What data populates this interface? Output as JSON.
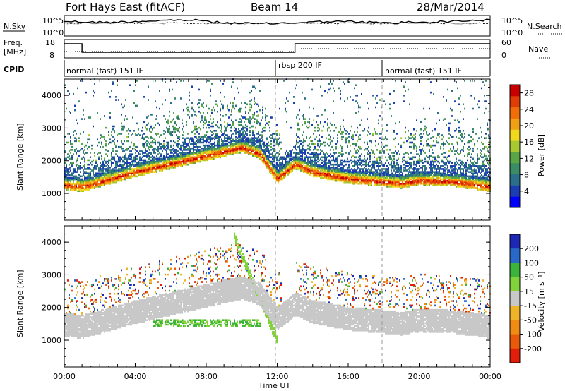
{
  "header": {
    "radar": "Fort Hays East (fitACF)",
    "beam": "Beam 14",
    "date": "28/Mar/2014"
  },
  "noise_panel": {
    "left_label": "N.Sky",
    "right_label": "N.Search",
    "left_ticks": [
      "10^5",
      "10^0"
    ],
    "right_ticks": [
      "10^5",
      "10^0"
    ]
  },
  "freq_panel": {
    "left_label_1": "Freq.",
    "left_label_2": "[MHz]",
    "right_label": "Nave",
    "left_ticks": [
      "18",
      "8"
    ],
    "right_ticks": [
      "60",
      "0"
    ]
  },
  "cpid": {
    "label": "CPID",
    "segments": [
      {
        "text": "normal (fast) 151 IF",
        "start_hour": 0
      },
      {
        "text": "rbsp 200 IF",
        "start_hour": 12.0
      },
      {
        "text": "normal (fast) 151 IF",
        "start_hour": 18.0
      }
    ]
  },
  "chart_data": [
    {
      "type": "heatmap",
      "name": "power",
      "ylabel": "Slant Range [km]",
      "xlabel": "",
      "xlim": [
        0,
        24
      ],
      "ylim": [
        180,
        4500
      ],
      "yticks": [
        1000,
        2000,
        3000,
        4000
      ],
      "colorbar": {
        "label": "Power [dB]",
        "ticks": [
          4,
          8,
          12,
          16,
          20,
          24,
          28
        ],
        "range": [
          0,
          30
        ],
        "colors": [
          "#0000ff",
          "#1c3cb4",
          "#2a6e8c",
          "#3a8c64",
          "#5aa646",
          "#a8c832",
          "#f0d81e",
          "#f0a014",
          "#f06e0a",
          "#e03c05",
          "#c80000"
        ]
      },
      "bands": [
        {
          "name": "main echo",
          "range_km": [
            [
              0,
              1150
            ],
            [
              1,
              1100
            ],
            [
              2,
              1250
            ],
            [
              4,
              1550
            ],
            [
              6,
              1800
            ],
            [
              8,
              2050
            ],
            [
              10,
              2300
            ],
            [
              11,
              2100
            ],
            [
              12,
              1350
            ],
            [
              13,
              1800
            ],
            [
              14,
              1550
            ],
            [
              16,
              1350
            ],
            [
              18,
              1250
            ],
            [
              19,
              1200
            ],
            [
              20,
              1300
            ],
            [
              22,
              1250
            ],
            [
              24,
              1100
            ]
          ]
        }
      ]
    },
    {
      "type": "heatmap",
      "name": "velocity",
      "ylabel": "Slant Range [km]",
      "xlabel": "Time UT",
      "xlim": [
        0,
        24
      ],
      "ylim": [
        180,
        4500
      ],
      "yticks": [
        1000,
        2000,
        3000,
        4000
      ],
      "xticks": [
        "00:00",
        "04:00",
        "08:00",
        "12:00",
        "16:00",
        "20:00",
        "00:00"
      ],
      "xtick_hours": [
        0,
        4,
        8,
        12,
        16,
        20,
        24
      ],
      "colorbar": {
        "label": "Velocity [m s⁻¹]",
        "ticks": [
          "200",
          "100",
          "50",
          "15",
          "-15",
          "-50",
          "-100",
          "-200"
        ],
        "colors": [
          "#1e28b4",
          "#2868c8",
          "#3cb43c",
          "#82d23c",
          "#c8c8c8",
          "#f0b428",
          "#f08c14",
          "#e85a0a",
          "#e01e0a"
        ]
      }
    }
  ]
}
